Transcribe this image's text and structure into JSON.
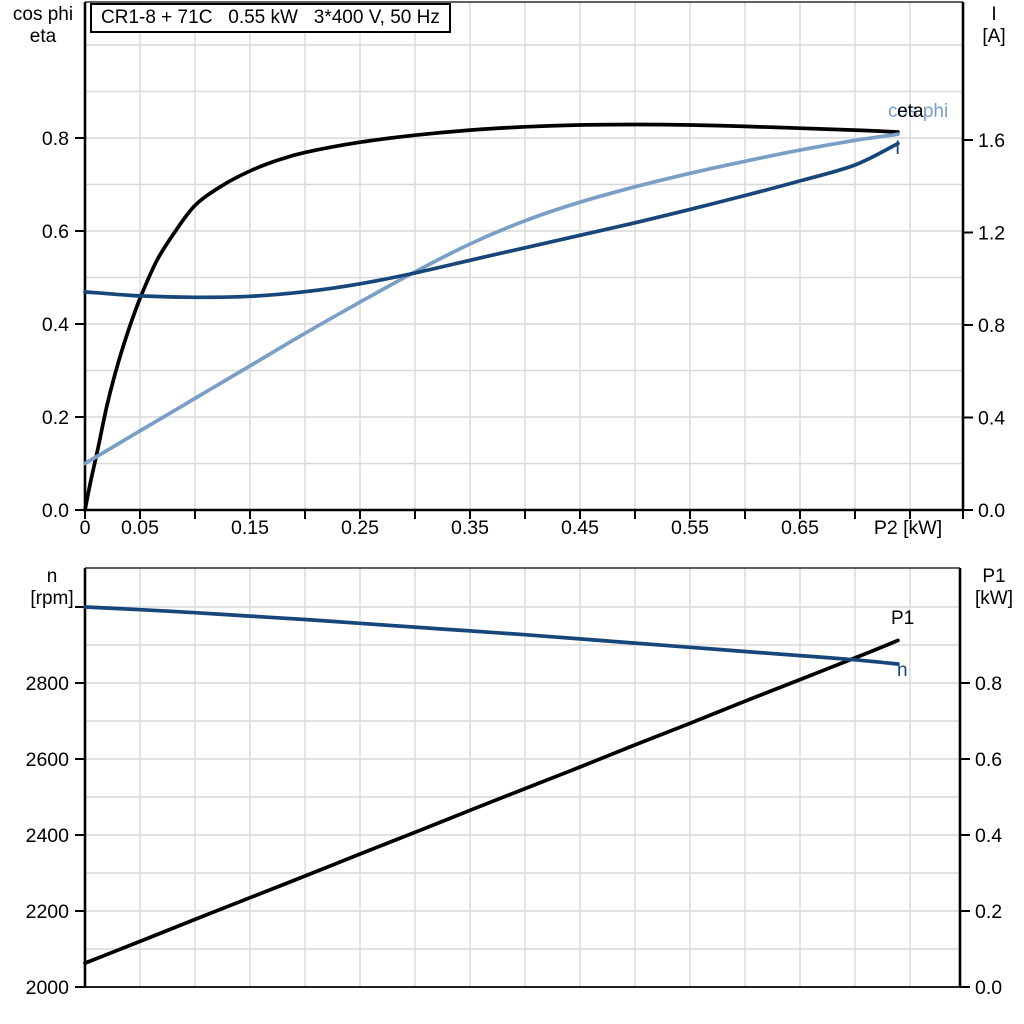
{
  "panel": {
    "background": "#ffffff"
  },
  "colors": {
    "black": "#000000",
    "dark_blue": "#17467a",
    "light_blue": "#7a9ec6",
    "grid": "#d9d9d9"
  },
  "chart_data": [
    {
      "type": "line",
      "title": "CR1-8 + 71C   0.55 kW   3*400 V, 50 Hz",
      "grid": true,
      "legend_position": "curve-end-labels",
      "x_axis": {
        "label": "P2 [kW]",
        "range": [
          0,
          0.8
        ],
        "tick_step": 0.05,
        "tick_values": [
          0,
          0.05,
          0.15,
          0.25,
          0.35,
          0.45,
          0.55,
          0.65
        ],
        "tick_labels": [
          "0",
          "0.05",
          "0.15",
          "0.25",
          "0.35",
          "0.45",
          "0.55",
          "0.65"
        ]
      },
      "y_left": {
        "title_lines": [
          "cos phi",
          "eta"
        ],
        "range": [
          0,
          1.09
        ],
        "grid_step": 0.1,
        "tick_values": [
          0.0,
          0.2,
          0.4,
          0.6,
          0.8
        ],
        "tick_labels": [
          "0.0",
          "0.2",
          "0.4",
          "0.6",
          "0.8"
        ]
      },
      "y_right": {
        "title_lines": [
          "I",
          "[A]"
        ],
        "range": [
          0,
          2.18
        ],
        "grid_step": 0.2,
        "tick_values": [
          0.0,
          0.4,
          0.8,
          1.2,
          1.6
        ],
        "tick_labels": [
          "0.0",
          "0.4",
          "0.8",
          "1.2",
          "1.6"
        ]
      },
      "series": [
        {
          "name": "eta",
          "axis": "left",
          "color_key": "black",
          "x": [
            0,
            0.005,
            0.012,
            0.02,
            0.03,
            0.04,
            0.05,
            0.065,
            0.08,
            0.1,
            0.125,
            0.15,
            0.175,
            0.2,
            0.25,
            0.3,
            0.35,
            0.4,
            0.45,
            0.5,
            0.55,
            0.6,
            0.65,
            0.7,
            0.739
          ],
          "y": [
            0,
            0.06,
            0.135,
            0.225,
            0.315,
            0.39,
            0.455,
            0.535,
            0.592,
            0.655,
            0.698,
            0.729,
            0.752,
            0.769,
            0.791,
            0.806,
            0.817,
            0.824,
            0.828,
            0.829,
            0.828,
            0.825,
            0.821,
            0.817,
            0.813
          ]
        },
        {
          "name": "cos phi",
          "axis": "left",
          "color_key": "light_blue",
          "x": [
            0,
            0.05,
            0.1,
            0.15,
            0.2,
            0.25,
            0.3,
            0.35,
            0.4,
            0.45,
            0.5,
            0.55,
            0.6,
            0.65,
            0.7,
            0.739
          ],
          "y": [
            0.1,
            0.17,
            0.24,
            0.31,
            0.38,
            0.447,
            0.512,
            0.572,
            0.622,
            0.662,
            0.695,
            0.724,
            0.75,
            0.774,
            0.795,
            0.808
          ]
        },
        {
          "name": "I",
          "axis": "right",
          "color_key": "dark_blue",
          "x": [
            0,
            0.05,
            0.1,
            0.15,
            0.2,
            0.25,
            0.3,
            0.35,
            0.4,
            0.45,
            0.5,
            0.55,
            0.6,
            0.65,
            0.7,
            0.739
          ],
          "y": [
            0.943,
            0.926,
            0.92,
            0.924,
            0.944,
            0.978,
            1.025,
            1.08,
            1.134,
            1.188,
            1.242,
            1.3,
            1.36,
            1.423,
            1.492,
            1.585
          ]
        }
      ]
    },
    {
      "type": "line",
      "title": "",
      "grid": true,
      "legend_position": "curve-end-labels",
      "x_axis": {
        "label": "",
        "range": [
          0,
          0.8
        ],
        "tick_step": 0.05,
        "tick_values": [],
        "tick_labels": []
      },
      "y_left": {
        "title_lines": [
          "n",
          "[rpm]"
        ],
        "range": [
          2000,
          3100
        ],
        "grid_step": 100,
        "tick_values": [
          2000,
          2200,
          2400,
          2600,
          2800,
          3000
        ],
        "tick_labels": [
          "2000",
          "2200",
          "2400",
          "2600",
          "2800",
          ""
        ]
      },
      "y_right": {
        "title_lines": [
          "P1",
          "[kW]"
        ],
        "range": [
          0,
          1.1
        ],
        "grid_step": 0.1,
        "tick_values": [
          0.0,
          0.2,
          0.4,
          0.6,
          0.8
        ],
        "tick_labels": [
          "0.0",
          "0.2",
          "0.4",
          "0.6",
          "0.8"
        ]
      },
      "series": [
        {
          "name": "P1",
          "axis": "right",
          "color_key": "black",
          "x": [
            0,
            0.05,
            0.1,
            0.15,
            0.2,
            0.25,
            0.3,
            0.35,
            0.4,
            0.45,
            0.5,
            0.55,
            0.6,
            0.65,
            0.7,
            0.739
          ],
          "y": [
            0.063,
            0.12,
            0.178,
            0.235,
            0.292,
            0.35,
            0.407,
            0.465,
            0.522,
            0.579,
            0.637,
            0.694,
            0.752,
            0.809,
            0.866,
            0.912
          ]
        },
        {
          "name": "n",
          "axis": "left",
          "color_key": "dark_blue",
          "x": [
            0,
            0.05,
            0.1,
            0.15,
            0.2,
            0.25,
            0.3,
            0.35,
            0.4,
            0.45,
            0.5,
            0.55,
            0.6,
            0.65,
            0.7,
            0.739
          ],
          "y": [
            3000,
            2993,
            2985,
            2976,
            2967,
            2957,
            2947,
            2937,
            2927,
            2916,
            2905,
            2894,
            2883,
            2872,
            2861,
            2850
          ]
        }
      ]
    }
  ]
}
